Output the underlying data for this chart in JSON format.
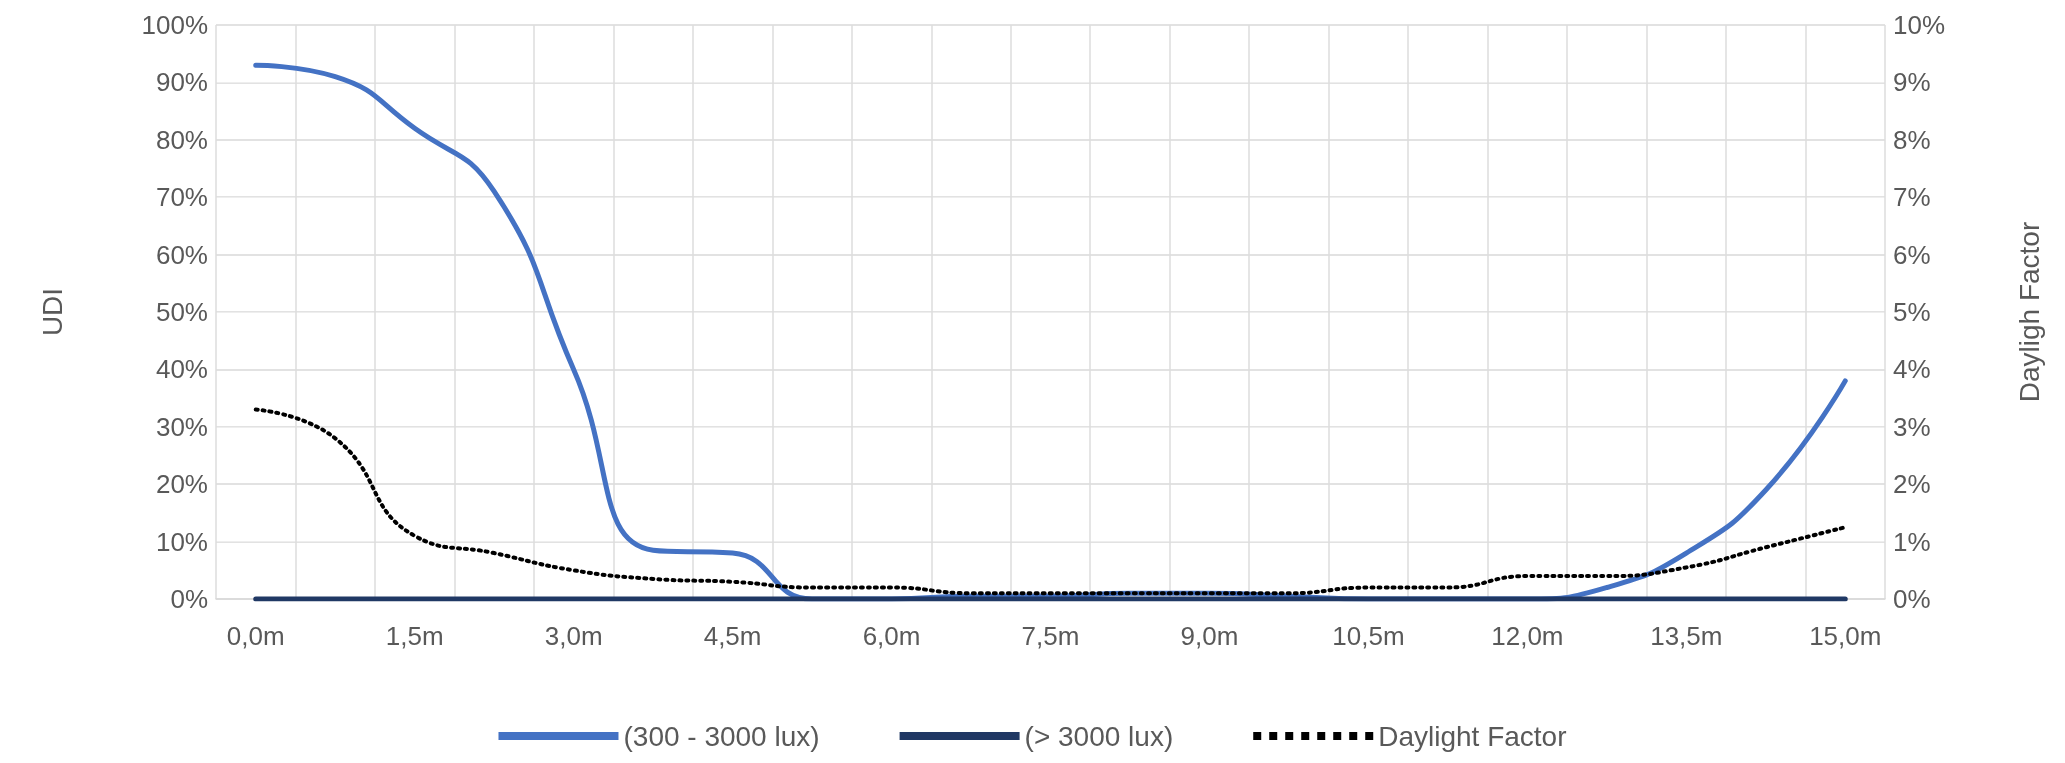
{
  "chart_data": {
    "type": "line",
    "ylabel": "UDI",
    "y2label": "Dayligh Factor",
    "categories": [
      "0,0m",
      null,
      "1,5m",
      null,
      "3,0m",
      null,
      "4,5m",
      null,
      "6,0m",
      null,
      "7,5m",
      null,
      "9,0m",
      null,
      "10,5m",
      null,
      "12,0m",
      null,
      "13,5m",
      null,
      "15,0m"
    ],
    "series": [
      {
        "name": "(300 - 3000 lux)",
        "color": "#4472c4",
        "line_style": "solid",
        "values": [
          93,
          91,
          82,
          71,
          40,
          8.5,
          8,
          0,
          0,
          0.5,
          0.5,
          1,
          1,
          0.5,
          0,
          0,
          0,
          2,
          8,
          19,
          38
        ]
      },
      {
        "name": "(> 3000 lux)",
        "color": "#203864",
        "line_style": "solid",
        "values": [
          0,
          0,
          0,
          0,
          0,
          0,
          0,
          0,
          0,
          0,
          0,
          0,
          0,
          0,
          0,
          0,
          0,
          0,
          0,
          0,
          0
        ]
      },
      {
        "name": "Daylight Factor",
        "color": "#000000",
        "line_style": "dotted",
        "axis": "y2",
        "values": [
          3.3,
          2.8,
          1.1,
          0.8,
          0.5,
          0.35,
          0.3,
          0.2,
          0.2,
          0.1,
          0.1,
          0.1,
          0.1,
          0.1,
          0.2,
          0.2,
          0.4,
          0.4,
          0.55,
          0.9,
          1.25
        ]
      }
    ],
    "ylim": [
      0,
      100
    ],
    "yticks": [
      {
        "value": 0,
        "label": "0%"
      },
      {
        "value": 10,
        "label": "10%"
      },
      {
        "value": 20,
        "label": "20%"
      },
      {
        "value": 30,
        "label": "30%"
      },
      {
        "value": 40,
        "label": "40%"
      },
      {
        "value": 50,
        "label": "50%"
      },
      {
        "value": 60,
        "label": "60%"
      },
      {
        "value": 70,
        "label": "70%"
      },
      {
        "value": 80,
        "label": "80%"
      },
      {
        "value": 90,
        "label": "90%"
      },
      {
        "value": 100,
        "label": "100%"
      }
    ],
    "y2lim": [
      0,
      10
    ],
    "y2ticks": [
      {
        "value": 0,
        "label": "0%"
      },
      {
        "value": 1,
        "label": "1%"
      },
      {
        "value": 2,
        "label": "2%"
      },
      {
        "value": 3,
        "label": "3%"
      },
      {
        "value": 4,
        "label": "4%"
      },
      {
        "value": 5,
        "label": "5%"
      },
      {
        "value": 6,
        "label": "6%"
      },
      {
        "value": 7,
        "label": "7%"
      },
      {
        "value": 8,
        "label": "8%"
      },
      {
        "value": 9,
        "label": "9%"
      },
      {
        "value": 10,
        "label": "10%"
      }
    ],
    "grid": true,
    "legend": "bottom",
    "marker": "none"
  }
}
